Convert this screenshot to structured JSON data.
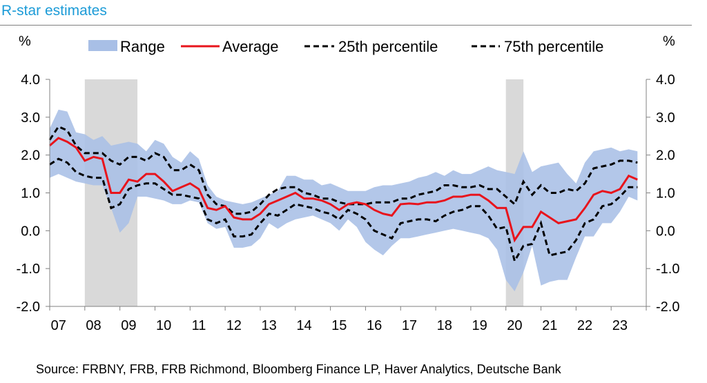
{
  "title": "R-star estimates",
  "source": "Source: FRBNY, FRB, FRB Richmond, Bloomberg Finance LP, Haver Analytics, Deutsche Bank",
  "colors": {
    "range": "#a8bfe6",
    "average": "#e8141c",
    "percentile": "#000000",
    "recession": "#d9d9d9",
    "title": "#1c9bd7"
  },
  "chart_data": {
    "type": "area",
    "ylabel_left": "%",
    "ylabel_right": "%",
    "ylim": [
      -2.0,
      4.0
    ],
    "yticks": [
      "4.0",
      "3.0",
      "2.0",
      "1.0",
      "0.0",
      "-1.0",
      "-2.0"
    ],
    "ytick_values": [
      4,
      3,
      2,
      1,
      0,
      -1,
      -2
    ],
    "xlim": [
      2007.0,
      2024.0
    ],
    "xtick_labels": [
      "07",
      "08",
      "09",
      "10",
      "11",
      "12",
      "13",
      "14",
      "15",
      "16",
      "17",
      "18",
      "19",
      "20",
      "21",
      "22",
      "23"
    ],
    "xtick_values": [
      2007.25,
      2008.25,
      2009.25,
      2010.25,
      2011.25,
      2012.25,
      2013.25,
      2014.25,
      2015.25,
      2016.25,
      2017.25,
      2018.25,
      2019.25,
      2020.25,
      2021.25,
      2022.25,
      2023.25
    ],
    "legend": [
      "Range",
      "Average",
      "25th percentile",
      "75th percentile"
    ],
    "legend_position": "top",
    "recessions": [
      [
        2008.0,
        2009.5
      ],
      [
        2020.0,
        2020.5
      ]
    ],
    "x": [
      2007.0,
      2007.25,
      2007.5,
      2007.75,
      2008.0,
      2008.25,
      2008.5,
      2008.75,
      2009.0,
      2009.25,
      2009.5,
      2009.75,
      2010.0,
      2010.25,
      2010.5,
      2010.75,
      2011.0,
      2011.25,
      2011.5,
      2011.75,
      2012.0,
      2012.25,
      2012.5,
      2012.75,
      2013.0,
      2013.25,
      2013.5,
      2013.75,
      2014.0,
      2014.25,
      2014.5,
      2014.75,
      2015.0,
      2015.25,
      2015.5,
      2015.75,
      2016.0,
      2016.25,
      2016.5,
      2016.75,
      2017.0,
      2017.25,
      2017.5,
      2017.75,
      2018.0,
      2018.25,
      2018.5,
      2018.75,
      2019.0,
      2019.25,
      2019.5,
      2019.75,
      2020.0,
      2020.25,
      2020.5,
      2020.75,
      2021.0,
      2021.25,
      2021.5,
      2021.75,
      2022.0,
      2022.25,
      2022.5,
      2022.75,
      2023.0,
      2023.25,
      2023.5,
      2023.75
    ],
    "series": [
      {
        "name": "Range",
        "kind": "band",
        "low": [
          1.4,
          1.5,
          1.4,
          1.3,
          1.25,
          1.2,
          1.2,
          0.6,
          -0.05,
          0.2,
          0.9,
          0.9,
          0.85,
          0.8,
          0.7,
          0.7,
          0.8,
          0.75,
          0.2,
          0.05,
          0.1,
          -0.45,
          -0.45,
          -0.4,
          -0.2,
          0.2,
          0.05,
          0.2,
          0.3,
          0.35,
          0.4,
          0.3,
          0.2,
          0.0,
          0.3,
          0.1,
          -0.3,
          -0.5,
          -0.65,
          -0.4,
          -0.2,
          -0.2,
          -0.15,
          -0.1,
          -0.05,
          0.0,
          0.05,
          0.0,
          -0.05,
          -0.1,
          -0.2,
          -0.5,
          -1.3,
          -1.6,
          -1.1,
          -0.4,
          -1.45,
          -1.35,
          -1.3,
          -1.3,
          -0.7,
          -0.15,
          -0.15,
          0.2,
          0.2,
          0.5,
          0.9,
          0.8
        ],
        "high": [
          2.7,
          3.2,
          3.15,
          2.6,
          2.55,
          2.4,
          2.5,
          2.25,
          2.3,
          2.35,
          2.3,
          2.1,
          2.4,
          2.3,
          1.95,
          1.8,
          2.1,
          1.9,
          1.2,
          0.9,
          0.8,
          0.75,
          0.7,
          0.75,
          0.85,
          0.95,
          1.05,
          1.45,
          1.45,
          1.35,
          1.35,
          1.2,
          1.25,
          1.15,
          1.05,
          1.05,
          1.05,
          1.15,
          1.2,
          1.2,
          1.25,
          1.3,
          1.4,
          1.45,
          1.55,
          1.45,
          1.6,
          1.5,
          1.5,
          1.6,
          1.7,
          1.6,
          1.55,
          1.5,
          2.1,
          1.55,
          1.7,
          1.75,
          1.8,
          1.5,
          1.25,
          1.8,
          2.1,
          2.15,
          2.2,
          2.1,
          2.15,
          2.1
        ]
      },
      {
        "name": "Average",
        "kind": "line",
        "values": [
          2.25,
          2.45,
          2.35,
          2.2,
          1.85,
          1.95,
          1.9,
          1.0,
          1.0,
          1.35,
          1.3,
          1.5,
          1.5,
          1.3,
          1.05,
          1.15,
          1.25,
          1.1,
          0.6,
          0.55,
          0.65,
          0.35,
          0.3,
          0.3,
          0.45,
          0.7,
          0.8,
          0.9,
          1.0,
          0.85,
          0.85,
          0.8,
          0.7,
          0.55,
          0.7,
          0.75,
          0.7,
          0.55,
          0.45,
          0.4,
          0.7,
          0.72,
          0.7,
          0.75,
          0.75,
          0.8,
          0.9,
          0.9,
          0.95,
          0.95,
          0.8,
          0.6,
          0.6,
          -0.25,
          0.1,
          0.1,
          0.5,
          0.35,
          0.2,
          0.25,
          0.3,
          0.6,
          0.95,
          1.05,
          1.0,
          1.1,
          1.45,
          1.35
        ]
      },
      {
        "name": "25th percentile",
        "kind": "dashed",
        "values": [
          1.75,
          1.9,
          1.8,
          1.55,
          1.45,
          1.4,
          1.4,
          0.6,
          0.7,
          1.1,
          1.2,
          1.25,
          1.25,
          1.1,
          0.95,
          0.95,
          0.9,
          0.85,
          0.3,
          0.2,
          0.3,
          -0.15,
          -0.15,
          -0.1,
          0.2,
          0.45,
          0.4,
          0.55,
          0.7,
          0.65,
          0.6,
          0.5,
          0.45,
          0.3,
          0.55,
          0.45,
          0.3,
          0.0,
          -0.1,
          -0.2,
          0.2,
          0.25,
          0.3,
          0.3,
          0.25,
          0.4,
          0.5,
          0.55,
          0.65,
          0.65,
          0.4,
          0.05,
          0.1,
          -0.8,
          -0.4,
          -0.35,
          0.2,
          -0.65,
          -0.6,
          -0.55,
          -0.25,
          0.2,
          0.3,
          0.65,
          0.7,
          0.9,
          1.15,
          1.15
        ]
      },
      {
        "name": "75th percentile",
        "kind": "dashed",
        "values": [
          2.4,
          2.75,
          2.65,
          2.25,
          2.05,
          2.05,
          2.05,
          1.85,
          1.75,
          1.95,
          1.95,
          1.85,
          2.05,
          1.95,
          1.6,
          1.6,
          1.75,
          1.6,
          0.95,
          0.7,
          0.65,
          0.45,
          0.45,
          0.5,
          0.7,
          0.95,
          1.1,
          1.15,
          1.15,
          1.0,
          0.95,
          0.85,
          0.85,
          0.75,
          0.7,
          0.7,
          0.7,
          0.75,
          0.75,
          0.75,
          0.85,
          0.85,
          0.95,
          1.0,
          1.05,
          1.2,
          1.2,
          1.15,
          1.15,
          1.2,
          1.1,
          1.1,
          0.9,
          0.7,
          1.3,
          0.95,
          1.2,
          1.0,
          1.0,
          1.1,
          1.05,
          1.25,
          1.65,
          1.7,
          1.75,
          1.85,
          1.85,
          1.8
        ]
      }
    ]
  }
}
